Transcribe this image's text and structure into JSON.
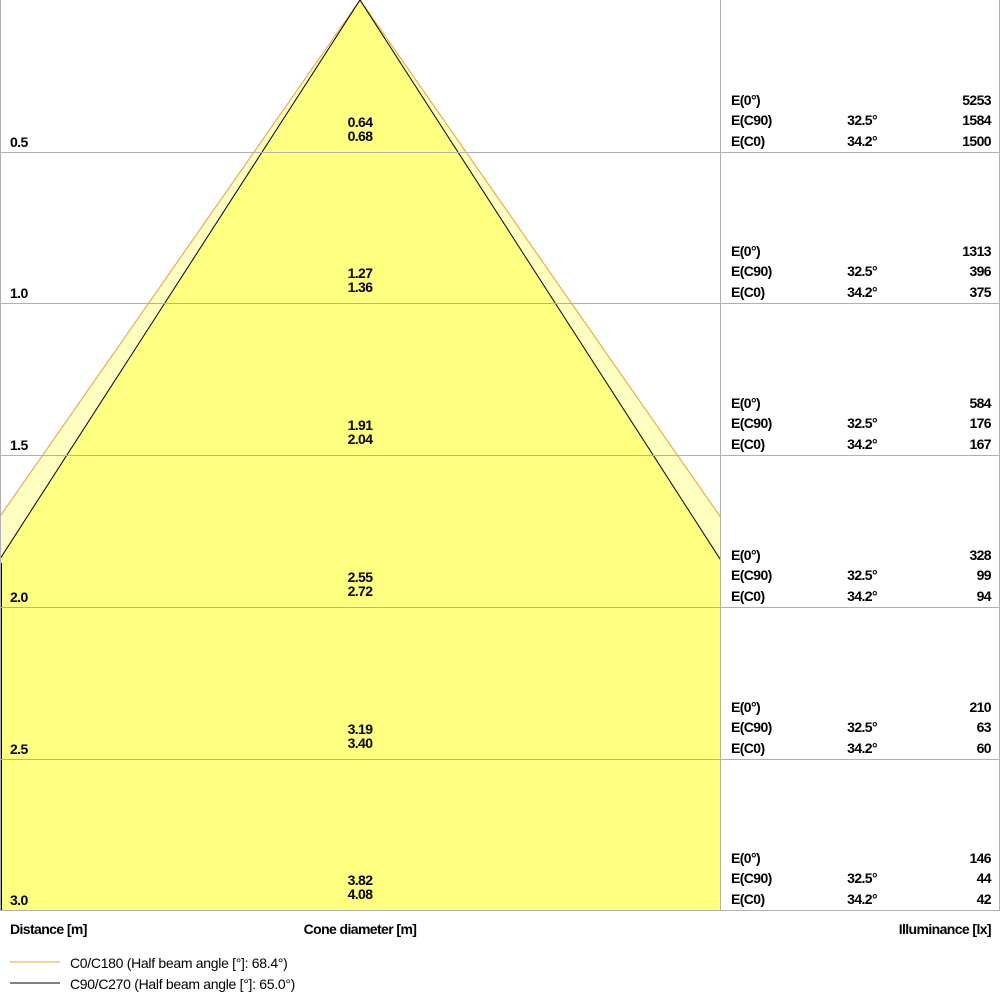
{
  "colors": {
    "c0_line": "#f0a030",
    "c90_line": "#000000",
    "inner_fill": "#ffff80",
    "outer_fill": "#ffffc0",
    "grid": "#b0b0b0"
  },
  "half_beam_angles": {
    "c0": 68.4,
    "c90": 65.0
  },
  "rows": [
    {
      "distance": "0.5",
      "cone_c90": "0.64",
      "cone_c0": "0.68",
      "e0": "5253",
      "c90_angle": "32.5°",
      "e_c90": "1584",
      "c0_angle": "34.2°",
      "e_c0": "1500"
    },
    {
      "distance": "1.0",
      "cone_c90": "1.27",
      "cone_c0": "1.36",
      "e0": "1313",
      "c90_angle": "32.5°",
      "e_c90": "396",
      "c0_angle": "34.2°",
      "e_c0": "375"
    },
    {
      "distance": "1.5",
      "cone_c90": "1.91",
      "cone_c0": "2.04",
      "e0": "584",
      "c90_angle": "32.5°",
      "e_c90": "176",
      "c0_angle": "34.2°",
      "e_c0": "167"
    },
    {
      "distance": "2.0",
      "cone_c90": "2.55",
      "cone_c0": "2.72",
      "e0": "328",
      "c90_angle": "32.5°",
      "e_c90": "99",
      "c0_angle": "34.2°",
      "e_c0": "94"
    },
    {
      "distance": "2.5",
      "cone_c90": "3.19",
      "cone_c0": "3.40",
      "e0": "210",
      "c90_angle": "32.5°",
      "e_c90": "63",
      "c0_angle": "34.2°",
      "e_c0": "60"
    },
    {
      "distance": "3.0",
      "cone_c90": "3.82",
      "cone_c0": "4.08",
      "e0": "146",
      "c90_angle": "32.5°",
      "e_c90": "44",
      "c0_angle": "34.2°",
      "e_c0": "42"
    }
  ],
  "labels": {
    "e0": "E(0°)",
    "e_c90": "E(C90)",
    "e_c0": "E(C0)",
    "distance_axis": "Distance [m]",
    "cone_axis": "Cone diameter [m]",
    "illuminance_axis": "Illuminance [lx]"
  },
  "legend": [
    {
      "label": "C0/C180 (Half beam angle [°]: 68.4°)",
      "color": "#f0a030"
    },
    {
      "label": "C90/C270 (Half beam angle [°]: 65.0°)",
      "color": "#000000"
    }
  ]
}
